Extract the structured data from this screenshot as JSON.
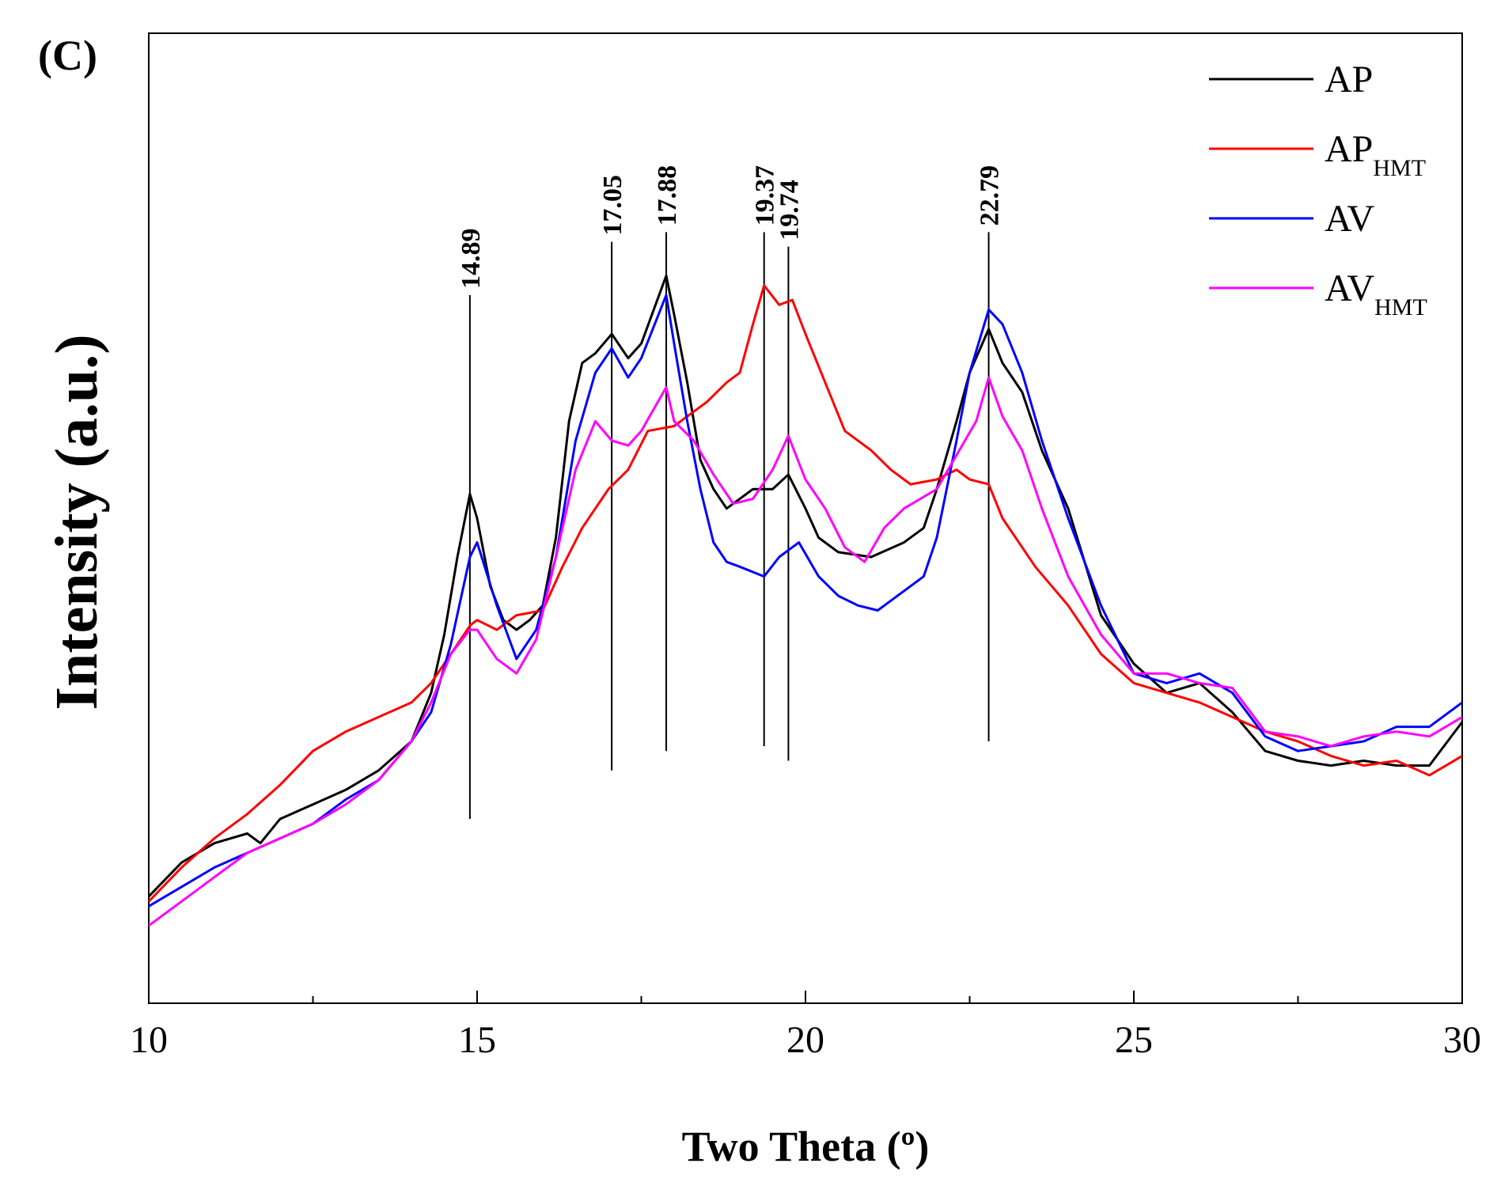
{
  "panel_label": "(C)",
  "chart_data": {
    "type": "line",
    "title": "",
    "xlabel": "Two Theta (º)",
    "ylabel": "Intensity (a.u.)",
    "xlim": [
      10,
      30
    ],
    "ylim": [
      0,
      100
    ],
    "x_ticks": [
      "10",
      "15",
      "20",
      "25",
      "30"
    ],
    "x_ticks_values": [
      10,
      15,
      20,
      25,
      30
    ],
    "x_minor_step": 2.5,
    "y_ticks": [],
    "legend": {
      "position": "top-right",
      "entries": [
        {
          "label": "AP",
          "subscript": "",
          "color": "#000000"
        },
        {
          "label": "AP",
          "subscript": "HMT",
          "color": "#ff0000"
        },
        {
          "label": "AV",
          "subscript": "",
          "color": "#0000ff"
        },
        {
          "label": "AV",
          "subscript": "HMT",
          "color": "#ff00ff"
        }
      ]
    },
    "peaks": [
      {
        "x": 14.89,
        "label": "14.89",
        "color": "#000000",
        "y_bottom": 19,
        "y_top": 73
      },
      {
        "x": 17.05,
        "label": "17.05",
        "color": "#000000",
        "y_bottom": 24,
        "y_top": 78.5
      },
      {
        "x": 17.88,
        "label": "17.88",
        "color": "#000000",
        "y_bottom": 26,
        "y_top": 79.5
      },
      {
        "x": 19.37,
        "label": "19.37",
        "color": "#ff0000",
        "y_bottom": 26.5,
        "y_top": 79.5
      },
      {
        "x": 19.74,
        "label": "19.74",
        "color": "#000000",
        "y_bottom": 25,
        "y_top": 78
      },
      {
        "x": 22.79,
        "label": "22.79",
        "color": "#000000",
        "y_bottom": 27,
        "y_top": 79.5
      }
    ],
    "series": [
      {
        "name": "AP",
        "color": "#000000",
        "x": [
          10.0,
          10.5,
          11.0,
          11.5,
          11.7,
          12.0,
          12.5,
          13.0,
          13.5,
          14.0,
          14.3,
          14.5,
          14.7,
          14.89,
          15.0,
          15.2,
          15.4,
          15.6,
          15.8,
          16.0,
          16.2,
          16.4,
          16.6,
          16.8,
          17.05,
          17.3,
          17.5,
          17.88,
          18.0,
          18.2,
          18.4,
          18.6,
          18.8,
          19.0,
          19.2,
          19.5,
          19.74,
          20.0,
          20.2,
          20.5,
          21.0,
          21.5,
          21.8,
          22.0,
          22.3,
          22.5,
          22.79,
          23.0,
          23.3,
          23.6,
          24.0,
          24.5,
          25.0,
          25.5,
          26.0,
          26.5,
          27.0,
          27.5,
          28.0,
          28.5,
          29.0,
          29.5,
          30.0
        ],
        "y": [
          11,
          14.5,
          16.5,
          17.5,
          16.5,
          19,
          20.5,
          22,
          24,
          27,
          32,
          38,
          46,
          52.5,
          50,
          43,
          39.5,
          38.5,
          39.5,
          41,
          48,
          60,
          66,
          67,
          69,
          66.5,
          68,
          75,
          71,
          64,
          56,
          53,
          51,
          52,
          53,
          53,
          54.5,
          51,
          48,
          46.5,
          46,
          47.5,
          49,
          53,
          60,
          65,
          69.5,
          66,
          63,
          57,
          51,
          40,
          35,
          32,
          33,
          30,
          26,
          25,
          24.5,
          25,
          24.5,
          24.5,
          29
        ]
      },
      {
        "name": "AP_HMT",
        "color": "#ff0000",
        "x": [
          10.0,
          10.5,
          11.0,
          11.5,
          12.0,
          12.5,
          13.0,
          13.5,
          14.0,
          14.3,
          14.6,
          14.9,
          15.0,
          15.3,
          15.6,
          16.0,
          16.3,
          16.6,
          17.0,
          17.3,
          17.6,
          18.0,
          18.5,
          18.8,
          19.0,
          19.2,
          19.37,
          19.6,
          19.8,
          20.0,
          20.3,
          20.6,
          21.0,
          21.3,
          21.6,
          22.0,
          22.3,
          22.5,
          22.79,
          23.0,
          23.5,
          24.0,
          24.5,
          25.0,
          25.5,
          26.0,
          26.5,
          27.0,
          27.5,
          28.0,
          28.5,
          29.0,
          29.5,
          30.0
        ],
        "y": [
          10.5,
          14,
          17,
          19.5,
          22.5,
          26,
          28,
          29.5,
          31,
          33,
          36,
          39,
          39.5,
          38.5,
          40,
          40.5,
          45,
          49,
          53,
          55,
          59,
          59.5,
          62,
          64,
          65,
          70,
          74,
          72,
          72.5,
          69,
          64,
          59,
          57,
          55,
          53.5,
          54,
          55,
          54,
          53.5,
          50,
          45,
          41,
          36,
          33,
          32,
          31,
          29.5,
          28,
          27,
          25.5,
          24.5,
          25,
          23.5,
          25.5
        ]
      },
      {
        "name": "AV",
        "color": "#0000ff",
        "x": [
          10.0,
          10.5,
          11.0,
          11.5,
          12.0,
          12.5,
          13.0,
          13.5,
          14.0,
          14.3,
          14.6,
          14.89,
          15.0,
          15.3,
          15.6,
          15.9,
          16.2,
          16.5,
          16.8,
          17.05,
          17.3,
          17.5,
          17.88,
          18.0,
          18.2,
          18.4,
          18.6,
          18.8,
          19.0,
          19.37,
          19.6,
          19.9,
          20.2,
          20.5,
          20.8,
          21.1,
          21.4,
          21.8,
          22.0,
          22.3,
          22.5,
          22.79,
          23.0,
          23.3,
          23.6,
          24.0,
          24.5,
          25.0,
          25.5,
          26.0,
          26.5,
          27.0,
          27.5,
          28.0,
          28.5,
          29.0,
          29.5,
          30.0
        ],
        "y": [
          10,
          12,
          14,
          15.5,
          17,
          18.5,
          21,
          23,
          27,
          30,
          37,
          46,
          47.5,
          41,
          35.5,
          38.5,
          46,
          58,
          65,
          67.5,
          64.5,
          66.5,
          73,
          68,
          60,
          53,
          47.5,
          45.5,
          45,
          44,
          46,
          47.5,
          44,
          42,
          41,
          40.5,
          42,
          44,
          48,
          58,
          65,
          71.5,
          70,
          65,
          58,
          50,
          41,
          34,
          33,
          34,
          32,
          27.5,
          26,
          26.5,
          27,
          28.5,
          28.5,
          31
        ]
      },
      {
        "name": "AV_HMT",
        "color": "#ff00ff",
        "x": [
          10.0,
          10.5,
          11.0,
          11.5,
          12.0,
          12.5,
          13.0,
          13.5,
          14.0,
          14.3,
          14.6,
          14.89,
          15.0,
          15.3,
          15.6,
          15.9,
          16.2,
          16.5,
          16.8,
          17.05,
          17.3,
          17.5,
          17.88,
          18.0,
          18.3,
          18.6,
          18.9,
          19.2,
          19.5,
          19.74,
          20.0,
          20.3,
          20.6,
          20.9,
          21.2,
          21.5,
          22.0,
          22.3,
          22.6,
          22.79,
          23.0,
          23.3,
          23.6,
          24.0,
          24.5,
          25.0,
          25.5,
          26.0,
          26.5,
          27.0,
          27.5,
          28.0,
          28.5,
          29.0,
          29.5,
          30.0
        ],
        "y": [
          8,
          10.5,
          13,
          15.5,
          17,
          18.5,
          20.5,
          23,
          27,
          31,
          36,
          38.5,
          38.5,
          35.5,
          34,
          37.5,
          46,
          55,
          60,
          58,
          57.5,
          59,
          63.5,
          60,
          58,
          54.5,
          51.5,
          52,
          55,
          58.5,
          54,
          51,
          47,
          45.5,
          49,
          51,
          53,
          56.5,
          60,
          64.5,
          60.5,
          57,
          51,
          44,
          38,
          34,
          34,
          33,
          32.5,
          28,
          27.5,
          26.5,
          27.5,
          28,
          27.5,
          29.5
        ]
      }
    ]
  }
}
